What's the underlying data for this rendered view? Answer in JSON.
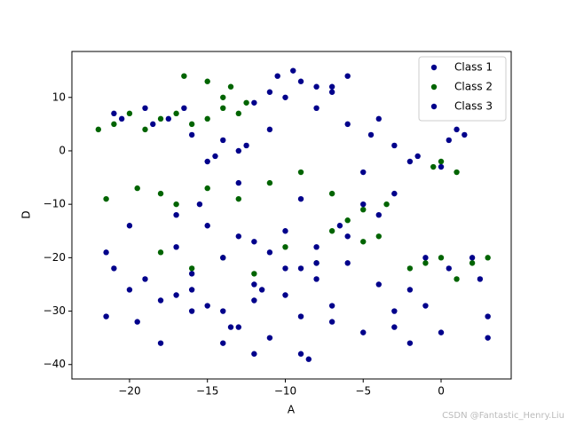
{
  "chart_data": {
    "type": "scatter",
    "x_label": "A",
    "y_label": "D",
    "xlim": [
      -23.7,
      4.5
    ],
    "ylim": [
      -42.7,
      18.6
    ],
    "xticks": [
      {
        "value": -20,
        "label": "−20"
      },
      {
        "value": -15,
        "label": "−15"
      },
      {
        "value": -10,
        "label": "−10"
      },
      {
        "value": -5,
        "label": "−5"
      },
      0
    ],
    "yticks": [
      {
        "value": -40,
        "label": "−40"
      },
      {
        "value": -30,
        "label": "−30"
      },
      {
        "value": -20,
        "label": "−20"
      },
      {
        "value": -10,
        "label": "−10"
      },
      0,
      10
    ],
    "grid": false,
    "legend": "upper right",
    "series": [
      {
        "name": "Class 1",
        "color": "#00008b",
        "x": [
          -21,
          -19,
          -17.5,
          -16,
          -14,
          -12,
          -10.5,
          -9,
          -8,
          -7,
          -6,
          -4.5,
          -3,
          -1.5,
          0.5,
          1,
          -11,
          -9.5,
          -13,
          -15,
          -20,
          -18,
          -16,
          -13,
          -11,
          -9,
          -7,
          -5,
          -3,
          -1,
          -21.5,
          -19,
          -17,
          -15,
          -14,
          -12,
          -10,
          -8,
          -6,
          -4,
          -2,
          0,
          2,
          3,
          -13,
          -9,
          -6.5,
          -15.5,
          -11.5,
          -8.5
        ],
        "values": [
          7,
          8,
          6,
          3,
          2,
          9,
          14,
          13,
          12,
          11,
          5,
          3,
          1,
          -1,
          2,
          4,
          11,
          15,
          0,
          -2,
          -26,
          -28,
          -30,
          -33,
          -35,
          -31,
          -29,
          -34,
          -30,
          -20,
          -19,
          -24,
          -27,
          -29,
          -36,
          -38,
          -22,
          -18,
          -16,
          -12,
          -26,
          -34,
          -20,
          -31,
          -16,
          -22,
          -14,
          -10,
          -26,
          -39
        ]
      },
      {
        "name": "Class 2",
        "color": "#006400",
        "x": [
          -22,
          -21,
          -20,
          -19,
          -18,
          -17,
          -16,
          -15,
          -14,
          -13,
          -16.5,
          -15,
          -13.5,
          -14,
          -12.5,
          -21.5,
          -19.5,
          -18,
          -17,
          -15,
          -13,
          -11,
          -9,
          -7,
          -5,
          -3.5,
          -18,
          -16,
          -14,
          -12,
          -10,
          -8,
          -2,
          -1,
          0,
          1,
          2,
          3,
          0,
          1,
          -0.5,
          -7,
          -6,
          -5,
          -4
        ],
        "values": [
          4,
          5,
          7,
          4,
          6,
          7,
          5,
          6,
          8,
          7,
          14,
          13,
          12,
          10,
          9,
          -9,
          -7,
          -8,
          -10,
          -7,
          -9,
          -6,
          -4,
          -8,
          -11,
          -10,
          -19,
          -22,
          -20,
          -23,
          -18,
          -21,
          -22,
          -21,
          -20,
          -24,
          -21,
          -20,
          -2,
          -4,
          -3,
          -15,
          -13,
          -17,
          -16
        ]
      },
      {
        "name": "Class 3",
        "color": "#00008b",
        "x": [
          -20.5,
          -18.5,
          -16.5,
          -14.5,
          -12.5,
          -10,
          -8,
          -6,
          -4,
          -2,
          0,
          1.5,
          -11,
          -7,
          -5,
          -13,
          -9,
          -3,
          -15,
          -17,
          -21,
          -19.5,
          -18,
          -16,
          -14,
          -12,
          -10,
          -8,
          -6,
          -4,
          -2,
          0.5,
          2.5,
          -12,
          -9,
          -7,
          -11,
          -13.5,
          -16,
          -21.5,
          -20,
          -17,
          -14,
          -12,
          -10,
          -8,
          -5,
          -3,
          -1,
          3
        ],
        "values": [
          6,
          5,
          8,
          -1,
          1,
          10,
          8,
          14,
          6,
          -2,
          -3,
          3,
          4,
          12,
          -4,
          -6,
          -9,
          -8,
          -14,
          -12,
          -22,
          -32,
          -36,
          -26,
          -20,
          -17,
          -15,
          -24,
          -21,
          -25,
          -36,
          -22,
          -24,
          -28,
          -38,
          -32,
          -19,
          -33,
          -23,
          -31,
          -14,
          -18,
          -30,
          -25,
          -27,
          -21,
          -10,
          -33,
          -29,
          -35
        ]
      }
    ]
  },
  "watermark": "CSDN @Fantastic_Henry.Liu"
}
